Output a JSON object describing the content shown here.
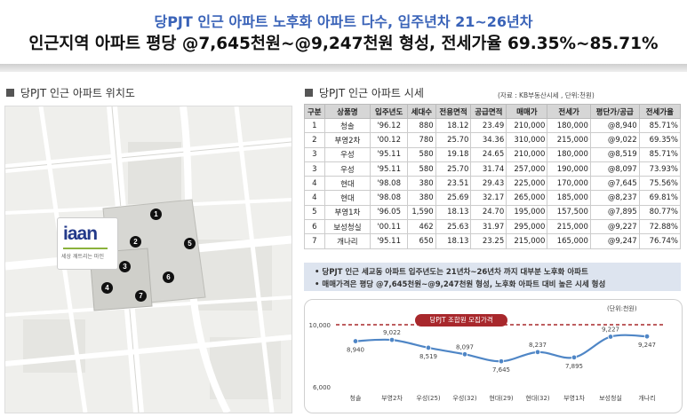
{
  "header": {
    "title_line1": "당PJT 인근 아파트 노후화 아파트 다수, 입주년차 21~26년차",
    "title_line2": "인근지역 아파트 평당 @7,645천원~@9,247천원 형성, 전세가율 69.35%~85.71%"
  },
  "map_panel": {
    "title": "당PJT 인근 아파트 위치도",
    "logo_word": "iaan",
    "logo_tagline": "세상 깨트리는 마인",
    "pins": [
      "1",
      "2",
      "3",
      "4",
      "5",
      "6",
      "7"
    ]
  },
  "price_panel": {
    "title": "당PJT 인근 아파트 시세",
    "source": "(자료 : KB부동산시세 , 단위:천원)",
    "columns": [
      "구분",
      "상품명",
      "입주년도",
      "세대수",
      "전용면적",
      "공급면적",
      "매매가",
      "전세가",
      "평단가/공급",
      "전세가율"
    ],
    "rows": [
      [
        "1",
        "청솔",
        "'96.12",
        "880",
        "18.12",
        "23.49",
        "210,000",
        "180,000",
        "@8,940",
        "85.71%"
      ],
      [
        "2",
        "부영2차",
        "'00.12",
        "780",
        "25.70",
        "34.36",
        "310,000",
        "215,000",
        "@9,022",
        "69.35%"
      ],
      [
        "3",
        "우성",
        "'95.11",
        "580",
        "19.18",
        "24.65",
        "210,000",
        "180,000",
        "@8,519",
        "85.71%"
      ],
      [
        "3",
        "우성",
        "'95.11",
        "580",
        "25.70",
        "31.74",
        "257,000",
        "190,000",
        "@8,097",
        "73.93%"
      ],
      [
        "4",
        "현대",
        "'98.08",
        "380",
        "23.51",
        "29.43",
        "225,000",
        "170,000",
        "@7,645",
        "75.56%"
      ],
      [
        "4",
        "현대",
        "'98.08",
        "380",
        "25.69",
        "32.17",
        "265,000",
        "185,000",
        "@8,237",
        "69.81%"
      ],
      [
        "5",
        "부영1차",
        "'96.05",
        "1,590",
        "18.13",
        "24.70",
        "195,000",
        "157,500",
        "@7,895",
        "80.77%"
      ],
      [
        "6",
        "보성청실",
        "'00.11",
        "462",
        "25.63",
        "31.97",
        "295,000",
        "215,000",
        "@9,227",
        "72.88%"
      ],
      [
        "7",
        "개나리",
        "'95.11",
        "650",
        "18.13",
        "23.25",
        "215,000",
        "165,000",
        "@9,247",
        "76.74%"
      ]
    ],
    "notes": [
      "• 당PJT 인근 세교동 아파트 입주년도는 21년차~26년차 까지 대부분 노후화 아파트",
      "• 매매가격은 평당 @7,645천원~@9,247천원 형성, 노후화 아파트 대비 높은 시세 형성"
    ],
    "chart_unit": "(단위:천원)",
    "reference_label": "당PJT 조합원 모집가격"
  },
  "chart_data": {
    "type": "line",
    "categories": [
      "청솔",
      "부영2차",
      "우성(25)",
      "우성(32)",
      "현대(29)",
      "현대(32)",
      "부영1차",
      "보성청실",
      "개나리"
    ],
    "values": [
      8940,
      9022,
      8519,
      8097,
      7645,
      8237,
      7895,
      9227,
      9247
    ],
    "value_labels": [
      "8,940",
      "9,022",
      "8,519",
      "8,097",
      "7,645",
      "8,237",
      "7,895",
      "9,227",
      "9,247"
    ],
    "yticks": [
      "10,000",
      "6,000"
    ],
    "ylim": [
      6000,
      10000
    ],
    "reference_value": 10000,
    "title": "",
    "xlabel": "",
    "ylabel": "",
    "colors": {
      "line": "#4f86c6",
      "reference": "#a8282c"
    }
  }
}
